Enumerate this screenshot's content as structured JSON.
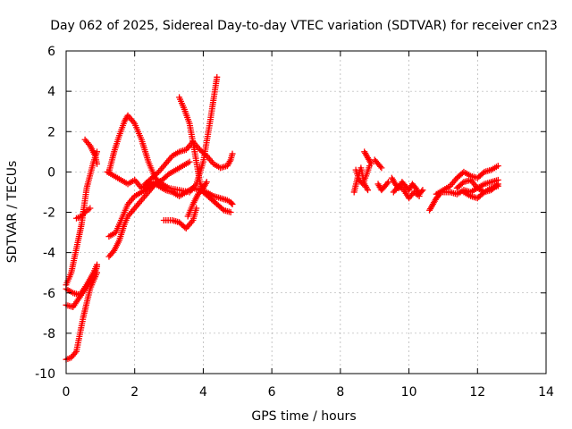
{
  "chart_data": {
    "type": "scatter",
    "title": "Day 062 of 2025, Sidereal Day-to-day VTEC variation (SDTVAR) for receiver cn23",
    "xlabel": "GPS time / hours",
    "ylabel": "SDTVAR / TECUs",
    "xlim": [
      0,
      14
    ],
    "ylim": [
      -10,
      6
    ],
    "xticks": [
      "0",
      "2",
      "4",
      "6",
      "8",
      "10",
      "12",
      "14"
    ],
    "yticks": [
      "-10",
      "-8",
      "-6",
      "-4",
      "-2",
      "0",
      "2",
      "4",
      "6"
    ],
    "grid": true,
    "marker": "+",
    "color": "#ff0000",
    "series": [
      {
        "x": [
          0.0,
          0.2,
          0.4,
          0.6,
          0.8,
          0.9
        ],
        "y": [
          -5.8,
          -6.0,
          -6.1,
          -5.6,
          -5.0,
          -4.6
        ]
      },
      {
        "x": [
          0.0,
          0.2,
          0.4,
          0.6,
          0.8,
          0.9
        ],
        "y": [
          -6.6,
          -6.7,
          -6.2,
          -5.7,
          -5.2,
          -4.7
        ]
      },
      {
        "x": [
          0.0,
          0.15,
          0.3,
          0.5,
          0.7,
          0.9
        ],
        "y": [
          -9.3,
          -9.2,
          -8.9,
          -7.2,
          -5.8,
          -5.0
        ]
      },
      {
        "x": [
          0.0,
          0.15,
          0.3,
          0.45,
          0.6,
          0.8,
          0.9
        ],
        "y": [
          -5.6,
          -5.0,
          -3.8,
          -2.6,
          -0.8,
          0.5,
          1.0
        ]
      },
      {
        "x": [
          0.55,
          0.7,
          0.85,
          0.9
        ],
        "y": [
          1.6,
          1.3,
          0.8,
          0.4
        ]
      },
      {
        "x": [
          0.3,
          0.45,
          0.55,
          0.7
        ],
        "y": [
          -2.3,
          -2.2,
          -2.0,
          -1.8
        ]
      },
      {
        "x": [
          1.25,
          1.4,
          1.55,
          1.7,
          1.8,
          2.0,
          2.2,
          2.4,
          2.6
        ],
        "y": [
          -4.2,
          -3.9,
          -3.4,
          -2.6,
          -2.2,
          -1.8,
          -1.4,
          -1.0,
          -0.6
        ]
      },
      {
        "x": [
          1.25,
          1.45,
          1.65,
          1.8,
          2.0,
          2.2,
          2.4,
          2.6,
          2.8,
          3.0,
          3.2,
          3.4,
          3.6
        ],
        "y": [
          -3.2,
          -3.0,
          -2.2,
          -1.6,
          -1.2,
          -1.0,
          -0.8,
          -0.6,
          -0.4,
          -0.1,
          0.1,
          0.3,
          0.5
        ]
      },
      {
        "x": [
          1.25,
          1.4,
          1.55,
          1.7,
          1.8,
          2.0,
          2.2,
          2.4,
          2.6,
          2.8,
          3.0,
          3.3,
          3.6,
          3.8,
          4.0,
          4.2,
          4.4
        ],
        "y": [
          0.0,
          1.0,
          1.8,
          2.5,
          2.8,
          2.4,
          1.6,
          0.5,
          -0.3,
          -0.6,
          -0.8,
          -0.9,
          -1.0,
          -0.6,
          0.5,
          2.5,
          4.7
        ]
      },
      {
        "x": [
          1.2,
          1.5,
          1.8,
          2.0,
          2.2,
          2.5,
          2.7,
          2.9,
          3.1,
          3.3,
          3.5,
          3.7,
          3.9,
          4.1,
          4.3,
          4.5,
          4.7,
          4.8,
          4.85
        ],
        "y": [
          0.0,
          -0.3,
          -0.6,
          -0.4,
          -0.8,
          -0.5,
          -0.7,
          -0.9,
          -1.0,
          -1.2,
          -1.0,
          -0.8,
          -0.9,
          -1.0,
          -1.2,
          -1.3,
          -1.4,
          -1.5,
          -1.6
        ]
      },
      {
        "x": [
          2.3,
          2.5,
          2.7,
          2.9,
          3.1,
          3.3,
          3.5,
          3.7,
          3.9,
          4.1,
          4.3,
          4.5,
          4.7,
          4.8,
          4.85
        ],
        "y": [
          -0.6,
          -0.3,
          0.0,
          0.4,
          0.8,
          1.0,
          1.1,
          1.5,
          1.1,
          0.8,
          0.4,
          0.2,
          0.3,
          0.6,
          0.9
        ]
      },
      {
        "x": [
          3.3,
          3.45,
          3.6,
          3.75,
          3.9,
          4.0,
          4.2,
          4.4,
          4.6,
          4.8
        ],
        "y": [
          3.7,
          3.1,
          2.4,
          1.0,
          -0.5,
          -1.0,
          -1.3,
          -1.6,
          -1.9,
          -2.0
        ]
      },
      {
        "x": [
          3.55,
          3.7,
          3.85,
          4.0,
          4.1
        ],
        "y": [
          -2.2,
          -1.6,
          -1.1,
          -0.8,
          -0.5
        ]
      },
      {
        "x": [
          2.85,
          3.1,
          3.3,
          3.5,
          3.7,
          3.8
        ],
        "y": [
          -2.4,
          -2.4,
          -2.5,
          -2.8,
          -2.4,
          -1.8
        ]
      },
      {
        "x": [
          8.4,
          8.5,
          8.6,
          8.7,
          8.8
        ],
        "y": [
          -1.0,
          -0.3,
          0.2,
          -0.6,
          -0.9
        ]
      },
      {
        "x": [
          8.45,
          8.55,
          8.65,
          8.75,
          8.85
        ],
        "y": [
          0.1,
          -0.4,
          -0.6,
          -0.2,
          0.3
        ]
      },
      {
        "x": [
          8.7,
          8.8,
          8.9
        ],
        "y": [
          1.0,
          0.7,
          0.4
        ]
      },
      {
        "x": [
          9.0,
          9.1,
          9.2
        ],
        "y": [
          0.6,
          0.4,
          0.2
        ]
      },
      {
        "x": [
          9.1,
          9.2,
          9.3,
          9.4
        ],
        "y": [
          -0.6,
          -0.9,
          -0.7,
          -0.5
        ]
      },
      {
        "x": [
          9.5,
          9.6,
          9.7,
          9.8,
          9.9,
          10.0,
          10.1,
          10.2,
          10.3,
          10.4
        ],
        "y": [
          -0.3,
          -0.6,
          -0.8,
          -0.5,
          -0.7,
          -0.9,
          -0.6,
          -0.8,
          -1.1,
          -0.9
        ]
      },
      {
        "x": [
          9.55,
          9.7,
          9.85,
          10.0,
          10.15,
          10.3
        ],
        "y": [
          -1.0,
          -0.7,
          -0.9,
          -1.3,
          -1.0,
          -1.2
        ]
      },
      {
        "x": [
          10.6,
          10.7,
          10.8,
          10.9
        ],
        "y": [
          -1.9,
          -1.6,
          -1.3,
          -1.1
        ]
      },
      {
        "x": [
          10.8,
          11.0,
          11.2,
          11.4,
          11.6,
          11.8,
          12.0,
          12.2,
          12.4,
          12.6
        ],
        "y": [
          -1.1,
          -0.9,
          -0.7,
          -0.3,
          0.0,
          -0.2,
          -0.3,
          0.0,
          0.1,
          0.3
        ]
      },
      {
        "x": [
          11.0,
          11.2,
          11.4,
          11.6,
          11.8,
          12.0,
          12.2,
          12.4,
          12.6
        ],
        "y": [
          -1.0,
          -1.0,
          -1.1,
          -0.9,
          -1.0,
          -0.8,
          -0.6,
          -0.5,
          -0.4
        ]
      },
      {
        "x": [
          11.4,
          11.6,
          11.8,
          12.0,
          12.2,
          12.4,
          12.6
        ],
        "y": [
          -0.8,
          -0.5,
          -0.4,
          -0.8,
          -1.0,
          -0.9,
          -0.6
        ]
      },
      {
        "x": [
          11.6,
          11.8,
          12.0,
          12.2,
          12.4,
          12.6
        ],
        "y": [
          -1.0,
          -1.2,
          -1.3,
          -1.0,
          -0.8,
          -0.7
        ]
      }
    ]
  }
}
